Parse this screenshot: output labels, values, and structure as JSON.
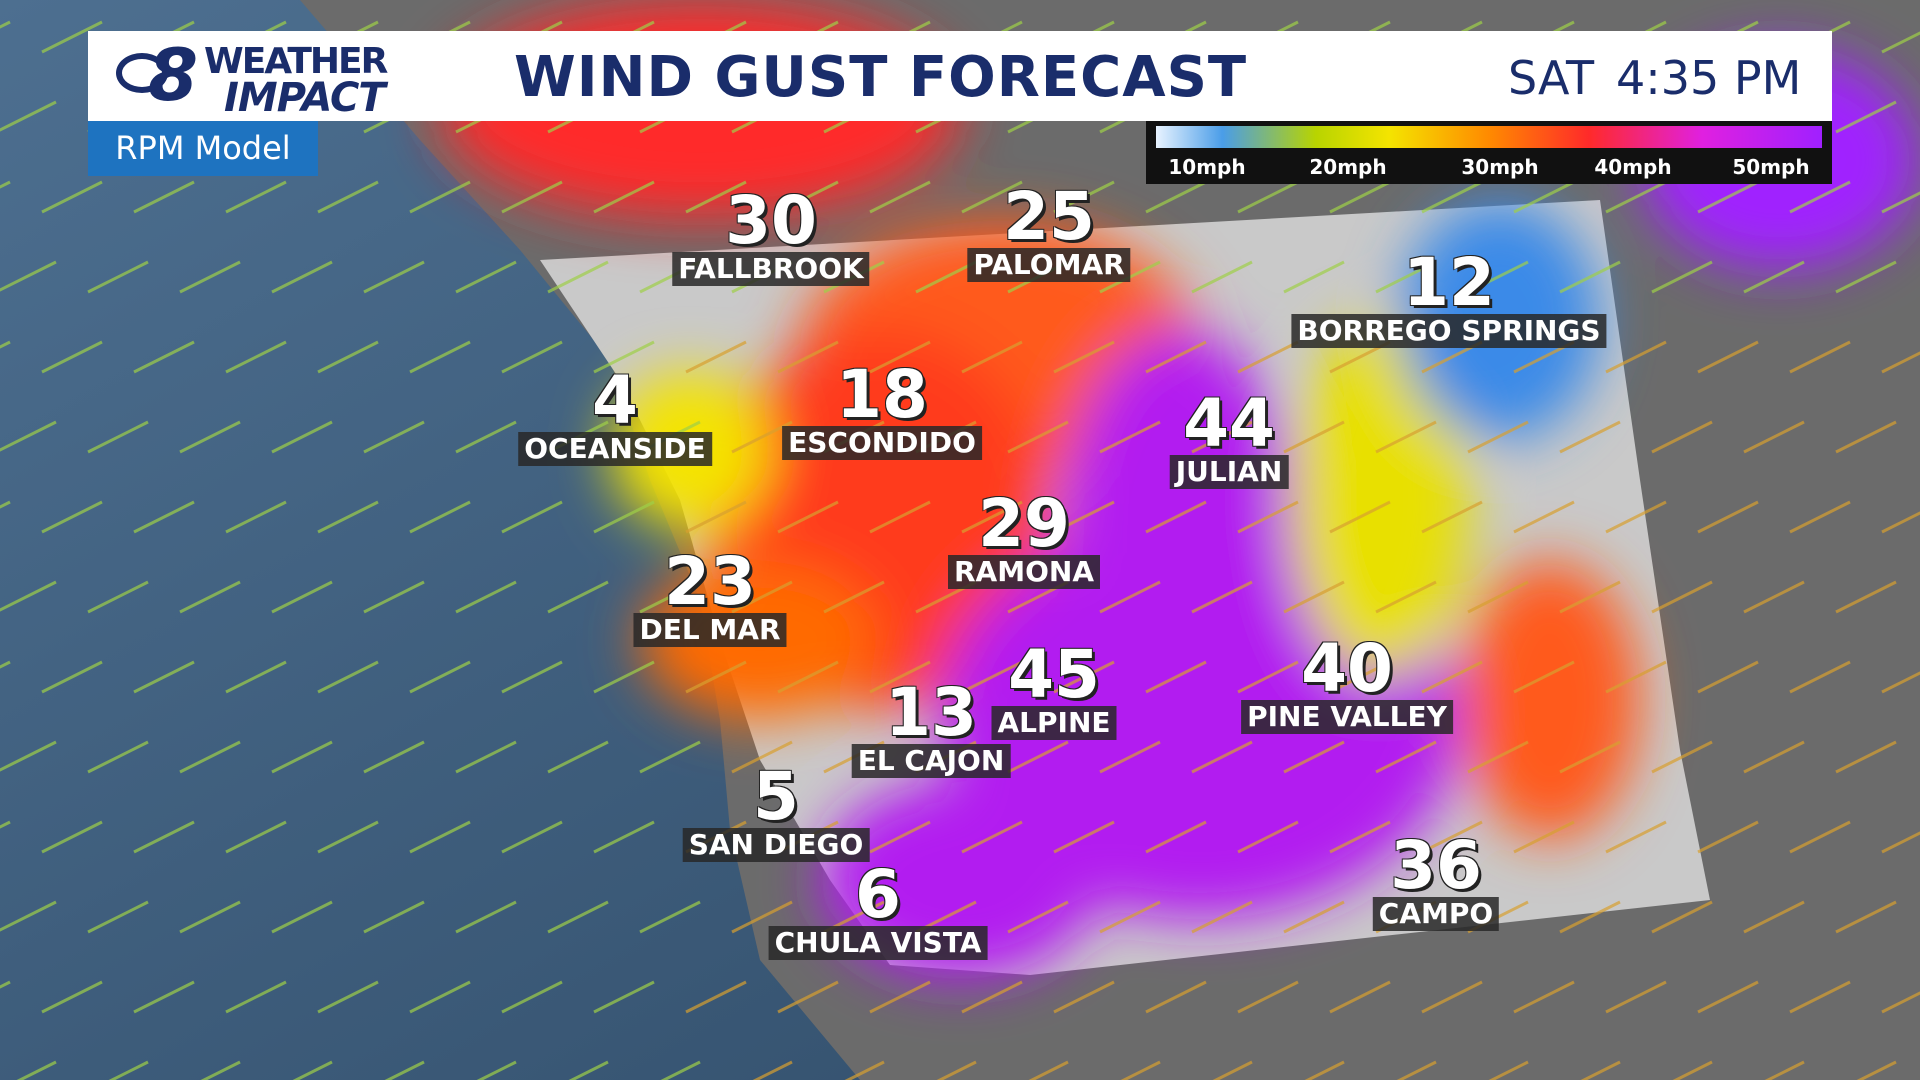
{
  "header": {
    "logo": {
      "channel": "8",
      "line1": "WEATHER",
      "line2": "IMPACT"
    },
    "title": "WIND GUST FORECAST",
    "day": "SAT",
    "time": "4:35 PM",
    "model": "RPM Model"
  },
  "legend": {
    "labels": [
      "10mph",
      "20mph",
      "30mph",
      "40mph",
      "50mph"
    ]
  },
  "cities": [
    {
      "name": "FALLBROOK",
      "value": 30
    },
    {
      "name": "PALOMAR",
      "value": 25
    },
    {
      "name": "BORREGO SPRINGS",
      "value": 12
    },
    {
      "name": "OCEANSIDE",
      "value": 4
    },
    {
      "name": "ESCONDIDO",
      "value": 18
    },
    {
      "name": "JULIAN",
      "value": 44
    },
    {
      "name": "RAMONA",
      "value": 29
    },
    {
      "name": "DEL MAR",
      "value": 23
    },
    {
      "name": "ALPINE",
      "value": 45
    },
    {
      "name": "PINE VALLEY",
      "value": 40
    },
    {
      "name": "EL CAJON",
      "value": 13
    },
    {
      "name": "SAN DIEGO",
      "value": 5
    },
    {
      "name": "CHULA VISTA",
      "value": 6
    },
    {
      "name": "CAMPO",
      "value": 36
    }
  ]
}
